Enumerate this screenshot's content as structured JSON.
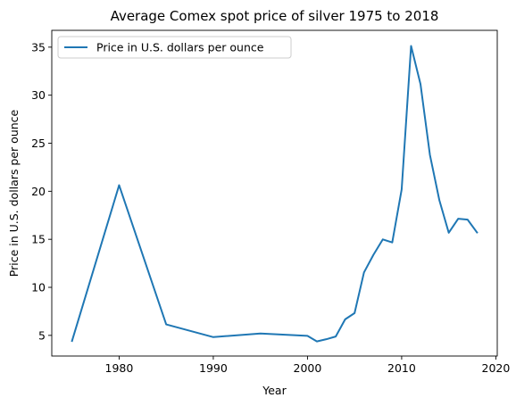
{
  "chart_data": {
    "type": "line",
    "title": "Average Comex spot price of silver 1975 to 2018",
    "xlabel": "Year",
    "ylabel": "Price in U.S. dollars per ounce",
    "xlim": [
      1972.85,
      2020.15
    ],
    "ylim": [
      2.85,
      36.75
    ],
    "xticks": [
      1980,
      1990,
      2000,
      2010,
      2020
    ],
    "yticks": [
      5,
      10,
      15,
      20,
      25,
      30,
      35
    ],
    "legend_position": "top-left",
    "grid": false,
    "series": [
      {
        "name": "Price in U.S. dollars per ounce",
        "color": "#1f77b4",
        "x": [
          1975,
          1980,
          1985,
          1990,
          1995,
          2000,
          2001,
          2002,
          2003,
          2004,
          2005,
          2006,
          2007,
          2008,
          2009,
          2010,
          2011,
          2012,
          2013,
          2014,
          2015,
          2016,
          2017,
          2018
        ],
        "y": [
          4.42,
          20.63,
          6.14,
          4.82,
          5.2,
          4.95,
          4.37,
          4.6,
          4.88,
          6.67,
          7.32,
          11.55,
          13.38,
          14.99,
          14.67,
          20.19,
          35.12,
          31.15,
          23.79,
          19.08,
          15.68,
          17.14,
          17.05,
          15.71
        ]
      }
    ]
  }
}
